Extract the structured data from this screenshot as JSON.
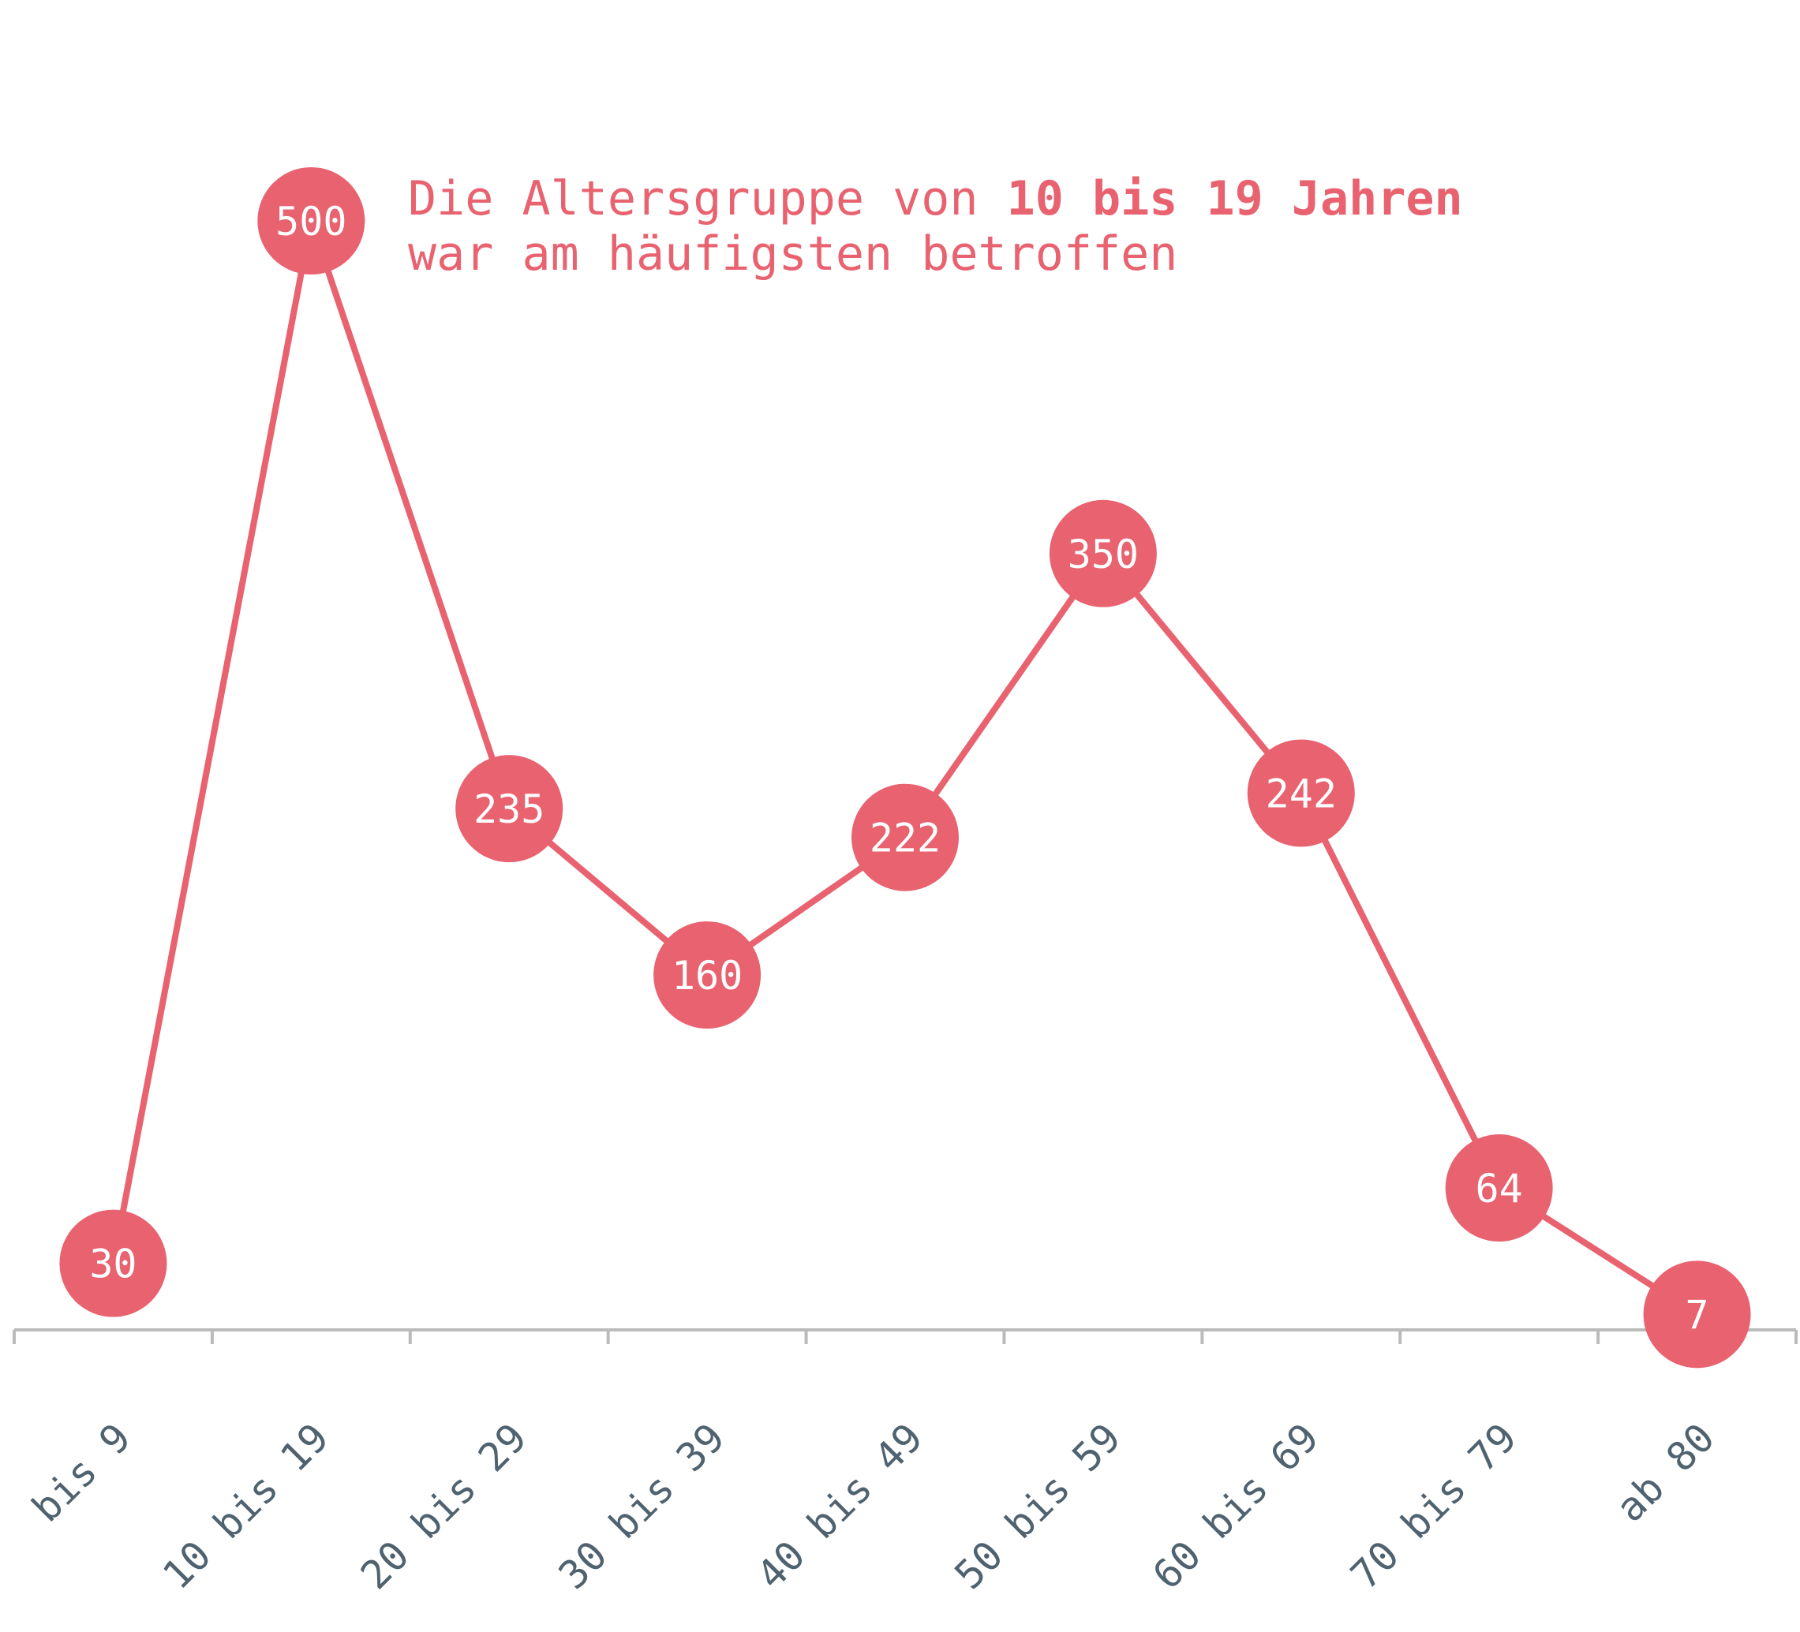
{
  "chart_data": {
    "type": "line",
    "categories": [
      "bis 9",
      "10 bis 19",
      "20 bis 29",
      "30 bis 39",
      "40 bis 49",
      "50 bis 59",
      "60 bis 69",
      "70 bis 79",
      "ab 80"
    ],
    "values": [
      30,
      500,
      235,
      160,
      222,
      350,
      242,
      64,
      7
    ],
    "title": "",
    "xlabel": "",
    "ylabel": "",
    "ylim": [
      0,
      500
    ],
    "grid": false,
    "annotation": {
      "line1_prefix": "Die Altersgruppe von ",
      "line1_bold": "10 bis 19 Jahren",
      "line2": "war am häufigsten betroffen"
    }
  },
  "colors": {
    "series": "#e8626f",
    "axis": "#bbbbbb",
    "tick_label": "#4f6270",
    "point_label": "#ffffff"
  }
}
